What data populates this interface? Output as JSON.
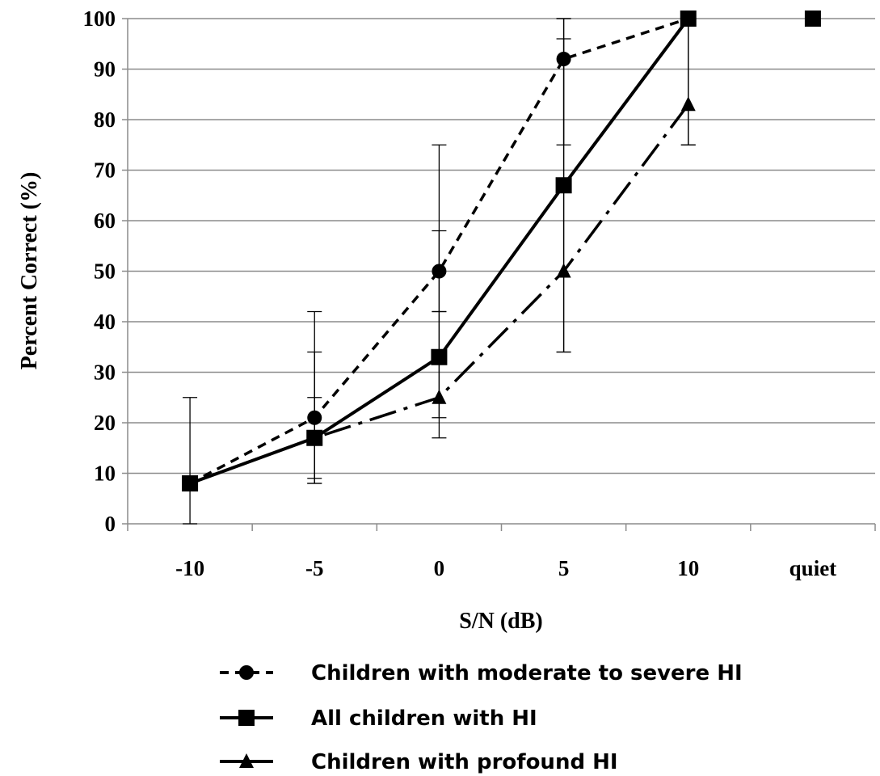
{
  "chart_data": {
    "type": "line",
    "categories": [
      "-10",
      "-5",
      "0",
      "5",
      "10",
      "quiet"
    ],
    "xlabel": "S/N (dB)",
    "ylabel": "Percent Correct (%)",
    "ylim": [
      0,
      100
    ],
    "yticks": [
      "0",
      "10",
      "20",
      "30",
      "40",
      "50",
      "60",
      "70",
      "80",
      "90",
      "100"
    ],
    "grid": "horizontal",
    "legend_position": "bottom",
    "series": [
      {
        "name": "Children with moderate to severe  HI",
        "marker": "circle",
        "line_style": "dashed",
        "values": [
          8,
          21,
          50,
          92,
          100,
          null
        ],
        "error_low": [
          null,
          8,
          42,
          75,
          null,
          null
        ],
        "error_high": [
          null,
          34,
          58,
          100,
          null,
          null
        ]
      },
      {
        "name": "All children with  HI",
        "marker": "square",
        "line_style": "solid",
        "values": [
          8,
          17,
          33,
          67,
          100,
          100
        ],
        "error_low": [
          0,
          8,
          21,
          34,
          75,
          null
        ],
        "error_high": [
          25,
          25,
          42,
          100,
          100,
          null
        ]
      },
      {
        "name": "Children with profound HI",
        "marker": "triangle",
        "line_style": "dash-dot",
        "values": [
          8,
          17,
          25,
          50,
          83,
          null
        ],
        "error_low": [
          null,
          9,
          17,
          34,
          75,
          null
        ],
        "error_high": [
          null,
          42,
          75,
          96,
          100,
          null
        ]
      }
    ]
  }
}
